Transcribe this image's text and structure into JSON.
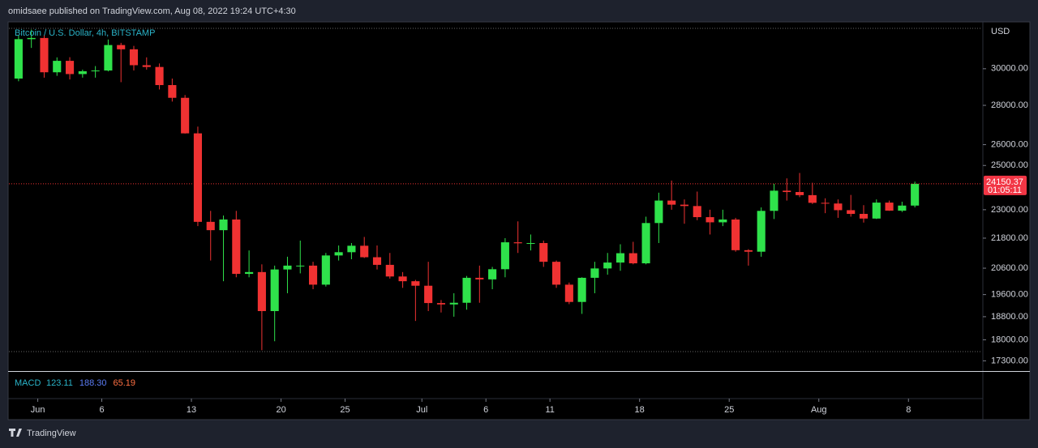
{
  "header": {
    "byline": "omidsaee published on TradingView.com, Aug 08, 2022 19:24 UTC+4:30",
    "brand": "TradingView"
  },
  "chart_data": {
    "type": "candlestick",
    "title": "Bitcoin / U.S. Dollar, 4h, BITSTAMP",
    "y_axis_label": "USD",
    "log_scale": true,
    "up_color": "#2fe24b",
    "down_color": "#f03232",
    "ylim": [
      16970,
      32720
    ],
    "yticks": [
      {
        "value": 30000,
        "label": "30000.00"
      },
      {
        "value": 28000,
        "label": "28000.00"
      },
      {
        "value": 26000,
        "label": "26000.00"
      },
      {
        "value": 25000,
        "label": "25000.00"
      },
      {
        "value": 23000,
        "label": "23000.00"
      },
      {
        "value": 21800,
        "label": "21800.00"
      },
      {
        "value": 20600,
        "label": "20600.00"
      },
      {
        "value": 19600,
        "label": "19600.00"
      },
      {
        "value": 18800,
        "label": "18800.00"
      },
      {
        "value": 18000,
        "label": "18000.00"
      },
      {
        "value": 17300,
        "label": "17300.00"
      }
    ],
    "xlim": [
      "2022-05-30",
      "2022-08-14"
    ],
    "xticks": [
      {
        "value": "2022-06-01",
        "label": "Jun"
      },
      {
        "value": "2022-06-06",
        "label": "6"
      },
      {
        "value": "2022-06-13",
        "label": "13"
      },
      {
        "value": "2022-06-20",
        "label": "20"
      },
      {
        "value": "2022-06-25",
        "label": "25"
      },
      {
        "value": "2022-07-01",
        "label": "Jul"
      },
      {
        "value": "2022-07-06",
        "label": "6"
      },
      {
        "value": "2022-07-11",
        "label": "11"
      },
      {
        "value": "2022-07-18",
        "label": "18"
      },
      {
        "value": "2022-07-25",
        "label": "25"
      },
      {
        "value": "2022-08-01",
        "label": "Aug"
      },
      {
        "value": "2022-08-08",
        "label": "8"
      }
    ],
    "x": [
      "2022-05-30",
      "2022-05-31",
      "2022-06-01",
      "2022-06-02",
      "2022-06-03",
      "2022-06-04",
      "2022-06-05",
      "2022-06-06",
      "2022-06-07",
      "2022-06-08",
      "2022-06-09",
      "2022-06-10",
      "2022-06-11",
      "2022-06-12",
      "2022-06-13",
      "2022-06-14",
      "2022-06-15",
      "2022-06-16",
      "2022-06-17",
      "2022-06-18",
      "2022-06-19",
      "2022-06-20",
      "2022-06-21",
      "2022-06-22",
      "2022-06-23",
      "2022-06-24",
      "2022-06-25",
      "2022-06-26",
      "2022-06-27",
      "2022-06-28",
      "2022-06-29",
      "2022-06-30",
      "2022-07-01",
      "2022-07-02",
      "2022-07-03",
      "2022-07-04",
      "2022-07-05",
      "2022-07-06",
      "2022-07-07",
      "2022-07-08",
      "2022-07-09",
      "2022-07-10",
      "2022-07-11",
      "2022-07-12",
      "2022-07-13",
      "2022-07-14",
      "2022-07-15",
      "2022-07-16",
      "2022-07-17",
      "2022-07-18",
      "2022-07-19",
      "2022-07-20",
      "2022-07-21",
      "2022-07-22",
      "2022-07-23",
      "2022-07-24",
      "2022-07-25",
      "2022-07-26",
      "2022-07-27",
      "2022-07-28",
      "2022-07-29",
      "2022-07-30",
      "2022-07-31",
      "2022-08-01",
      "2022-08-02",
      "2022-08-03",
      "2022-08-04",
      "2022-08-05",
      "2022-08-06",
      "2022-08-07",
      "2022-08-08"
    ],
    "open": [
      29450,
      31720,
      31790,
      29800,
      30450,
      29700,
      29860,
      29900,
      31370,
      31120,
      30200,
      30100,
      29090,
      28400,
      26560,
      22480,
      22130,
      22580,
      20380,
      20450,
      19000,
      20550,
      20700,
      20700,
      19970,
      21100,
      21230,
      21490,
      21030,
      20730,
      20280,
      20100,
      19930,
      19290,
      19240,
      19300,
      20230,
      20170,
      20560,
      21630,
      21590,
      21600,
      20850,
      19970,
      19330,
      20230,
      20590,
      20820,
      21190,
      20790,
      22430,
      23400,
      23220,
      23160,
      22680,
      22460,
      22580,
      21310,
      21250,
      22950,
      23840,
      23780,
      23640,
      23300,
      23270,
      22980,
      22820,
      22620,
      23310,
      22960,
      23180
    ],
    "high": [
      31950,
      32300,
      31950,
      30650,
      30660,
      29950,
      30150,
      31700,
      31500,
      31320,
      30650,
      30300,
      29450,
      28550,
      26900,
      22950,
      22750,
      22950,
      21300,
      20750,
      20700,
      21050,
      21700,
      20850,
      21200,
      21500,
      21600,
      21850,
      21500,
      21200,
      20450,
      20150,
      20850,
      19400,
      19650,
      20300,
      20700,
      20650,
      21800,
      22500,
      21950,
      21700,
      20900,
      20050,
      20250,
      20850,
      21200,
      21550,
      21650,
      22700,
      23750,
      24300,
      23450,
      23800,
      23000,
      23000,
      22650,
      21350,
      23100,
      24150,
      24400,
      24650,
      24200,
      23500,
      23450,
      23650,
      23200,
      23450,
      23400,
      23350,
      24250
    ],
    "low": [
      29300,
      31200,
      29500,
      29600,
      29400,
      29500,
      29500,
      29850,
      29250,
      29900,
      29950,
      28850,
      28200,
      26550,
      22300,
      20900,
      20100,
      20250,
      20250,
      17650,
      17950,
      19650,
      20400,
      19800,
      19900,
      20900,
      20950,
      21000,
      20550,
      20200,
      19850,
      18650,
      19000,
      18950,
      18800,
      19050,
      19300,
      19800,
      20250,
      21200,
      21300,
      20650,
      19850,
      19250,
      18900,
      19650,
      20350,
      20500,
      20750,
      20750,
      21600,
      23000,
      22400,
      22550,
      21950,
      22300,
      21250,
      20700,
      21050,
      22600,
      23400,
      23550,
      23250,
      22850,
      22650,
      22700,
      22450,
      22600,
      22950,
      22900,
      23100
    ],
    "close": [
      31720,
      31790,
      29800,
      30450,
      29700,
      29860,
      29900,
      31370,
      31120,
      30200,
      30100,
      29090,
      28400,
      26560,
      22480,
      22130,
      22580,
      20380,
      20450,
      19000,
      20550,
      20700,
      20700,
      19970,
      21100,
      21230,
      21490,
      21030,
      20730,
      20280,
      20100,
      19930,
      19290,
      19240,
      19300,
      20230,
      20170,
      20560,
      21630,
      21590,
      21600,
      20850,
      19970,
      19330,
      20230,
      20590,
      20820,
      21190,
      20790,
      22430,
      23400,
      23220,
      23160,
      22680,
      22460,
      22580,
      21310,
      21250,
      22950,
      23840,
      23780,
      23640,
      23300,
      23270,
      22980,
      22820,
      22620,
      23310,
      22960,
      23180,
      24150.37
    ],
    "countdown": "01:05:11",
    "indicator": {
      "name": "MACD",
      "readouts": [
        "123.11",
        "188.30",
        "65.19"
      ],
      "colors": [
        "#2ab4c9",
        "#5b7cf5",
        "#ff7043"
      ]
    }
  }
}
